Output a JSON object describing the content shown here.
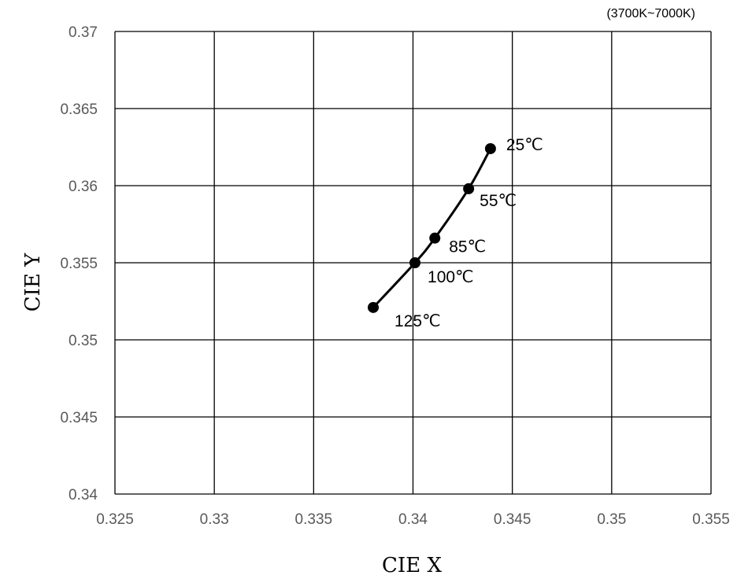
{
  "chart_data": {
    "type": "scatter",
    "annotation": "(3700K~7000K)",
    "xlabel": "CIE X",
    "ylabel": "CIE Y",
    "xlim": [
      0.325,
      0.355
    ],
    "ylim": [
      0.34,
      0.37
    ],
    "x_ticks": [
      "0.325",
      "0.33",
      "0.335",
      "0.34",
      "0.345",
      "0.35",
      "0.355"
    ],
    "y_ticks": [
      "0.34",
      "0.345",
      "0.35",
      "0.355",
      "0.36",
      "0.365",
      "0.37"
    ],
    "grid": true,
    "line_color": "#000000",
    "series": [
      {
        "points": [
          {
            "x": 0.3439,
            "y": 0.3624,
            "label": "25℃"
          },
          {
            "x": 0.3428,
            "y": 0.3598,
            "label": "55℃"
          },
          {
            "x": 0.3411,
            "y": 0.3566,
            "label": "85℃"
          },
          {
            "x": 0.3401,
            "y": 0.355,
            "label": "100℃"
          },
          {
            "x": 0.338,
            "y": 0.3521,
            "label": "125℃"
          }
        ]
      }
    ]
  }
}
